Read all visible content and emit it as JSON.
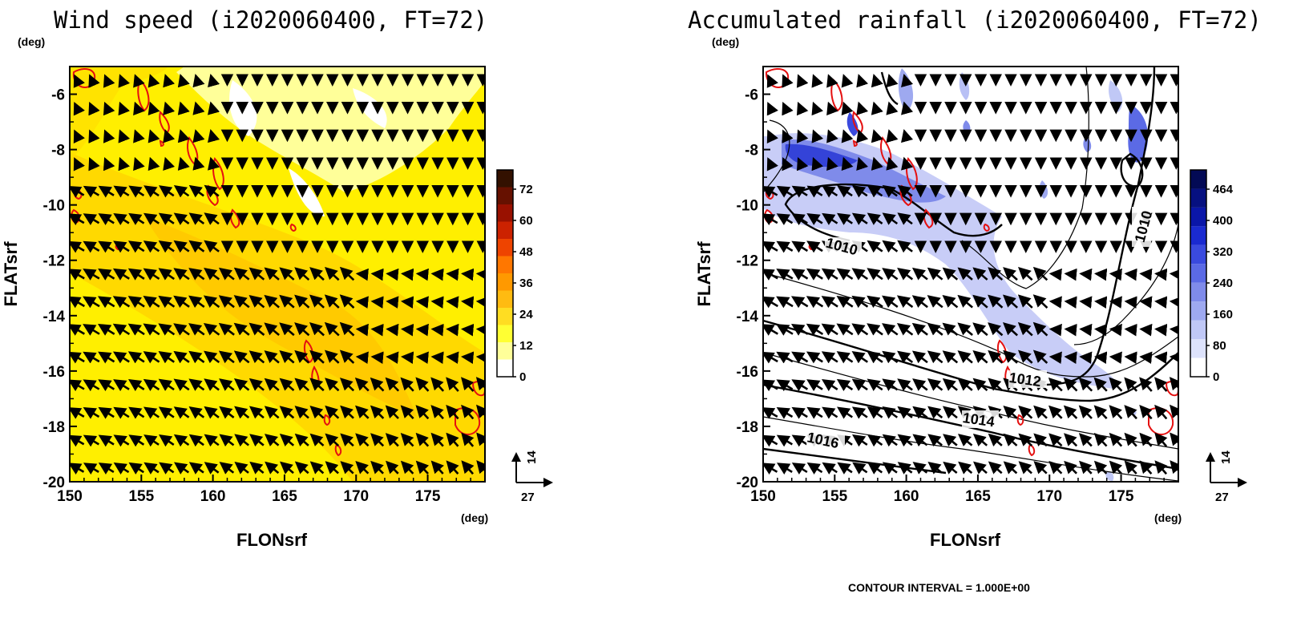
{
  "chart_data": [
    {
      "type": "heatmap",
      "title": "Wind speed (i2020060400, FT=72)",
      "xlabel": "FLONsrf",
      "ylabel": "FLATsrf",
      "x_unit": "(deg)",
      "y_unit": "(deg)",
      "xlim": [
        150,
        179
      ],
      "ylim": [
        -20,
        -5
      ],
      "xticks": [
        "150",
        "155",
        "160",
        "165",
        "170",
        "175"
      ],
      "yticks": [
        "-6",
        "-8",
        "-10",
        "-12",
        "-14",
        "-16",
        "-18",
        "-20"
      ],
      "colorbar": {
        "ticks": [
          "72",
          "60",
          "48",
          "36",
          "24",
          "12",
          "0"
        ],
        "colors": [
          "#ffffff",
          "#ffff99",
          "#ffff33",
          "#ffdd22",
          "#ffbb11",
          "#ff9900",
          "#ff7700",
          "#ee4400",
          "#cc2200",
          "#991100",
          "#661100",
          "#331100"
        ]
      },
      "vector_reference": {
        "u_label": "27",
        "v_label": "14"
      },
      "colors": {
        "background_field": "#fff100",
        "strong_field": "#ffc000",
        "calm": "#ffffff",
        "overlay_contour": "#ee1111"
      }
    },
    {
      "type": "heatmap",
      "title": "Accumulated rainfall (i2020060400, FT=72)",
      "xlabel": "FLONsrf",
      "ylabel": "FLATsrf",
      "x_unit": "(deg)",
      "y_unit": "(deg)",
      "xlim": [
        150,
        179
      ],
      "ylim": [
        -20,
        -5
      ],
      "xticks": [
        "150",
        "155",
        "160",
        "165",
        "170",
        "175"
      ],
      "yticks": [
        "-6",
        "-8",
        "-10",
        "-12",
        "-14",
        "-16",
        "-18",
        "-20"
      ],
      "colorbar": {
        "ticks": [
          "464",
          "400",
          "320",
          "240",
          "160",
          "80",
          "0"
        ],
        "colors": [
          "#ffffff",
          "#dde2fb",
          "#c0c8f6",
          "#9ea9f0",
          "#7f8bea",
          "#5b6ae5",
          "#3a4ade",
          "#1a2ad0",
          "#0a16a8",
          "#061080",
          "#030a55"
        ]
      },
      "contour_labels": [
        "1010",
        "1010",
        "1012",
        "1014",
        "1016"
      ],
      "vector_reference": {
        "u_label": "27",
        "v_label": "14"
      },
      "footer": "CONTOUR INTERVAL = 1.000E+00",
      "colors": {
        "rain": "#4455e0",
        "pressure_contour": "#000000",
        "overlay_contour": "#ee1111"
      }
    }
  ]
}
